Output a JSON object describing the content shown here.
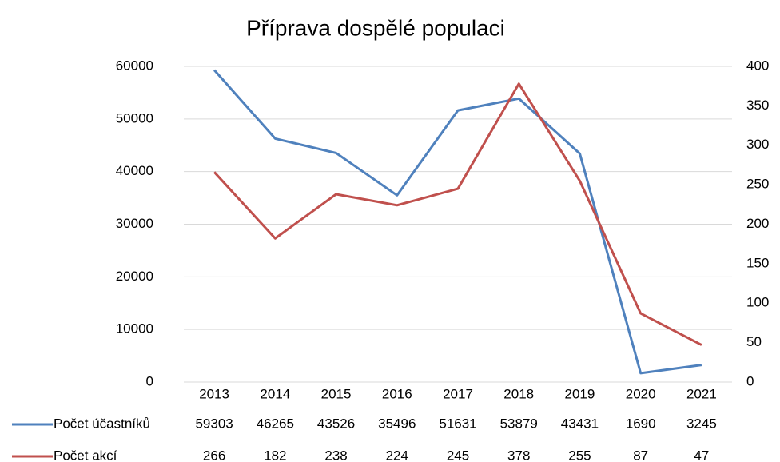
{
  "chart_data": {
    "type": "line",
    "title": "Příprava dospělé populaci",
    "categories": [
      "2013",
      "2014",
      "2015",
      "2016",
      "2017",
      "2018",
      "2019",
      "2020",
      "2021"
    ],
    "series": [
      {
        "name": "Počet účastníků",
        "color": "#4f81bd",
        "values": [
          59303,
          46265,
          43526,
          35496,
          51631,
          53879,
          43431,
          1690,
          3245
        ]
      },
      {
        "name": "Počet akcí",
        "color": "#c0504d",
        "axis": "y2",
        "values": [
          266,
          182,
          238,
          224,
          245,
          378,
          255,
          87,
          47
        ]
      }
    ],
    "ylim": [
      0,
      60000
    ],
    "yticks": [
      0,
      10000,
      20000,
      30000,
      40000,
      50000,
      60000
    ],
    "y2lim": [
      0,
      400
    ],
    "y2ticks": [
      0,
      50,
      100,
      150,
      200,
      250,
      300,
      350,
      400
    ],
    "grid": true
  }
}
